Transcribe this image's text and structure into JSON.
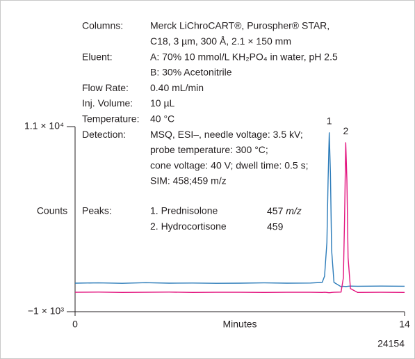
{
  "chart_data": {
    "type": "line",
    "y_label": "Counts",
    "x_label": "Minutes",
    "figure_id": "24154",
    "conditions": [
      {
        "label": "Columns:",
        "lines": [
          "Merck LiChroCART®, Purospher® STAR,",
          "C18, 3 µm, 300 Å, 2.1 × 150 mm"
        ]
      },
      {
        "label": "Eluent:",
        "lines": [
          "A: 70% 10 mmol/L KH₂PO₄ in water, pH 2.5",
          "B: 30% Acetonitrile"
        ]
      },
      {
        "label": "Flow Rate:",
        "lines": [
          "0.40 mL/min"
        ]
      },
      {
        "label": "Inj. Volume:",
        "lines": [
          "10 µL"
        ]
      },
      {
        "label": "Temperature:",
        "lines": [
          "40 °C"
        ]
      },
      {
        "label": "Detection:",
        "lines": [
          "MSQ, ESI–, needle voltage: 3.5 kV;",
          "probe temperature: 300 °C;",
          "cone voltage: 40 V; dwell time: 0.5 s;",
          "SIM: 458;459 m/z"
        ]
      }
    ],
    "peaks_label": "Peaks:",
    "peaks": [
      {
        "name": "1. Prednisolone",
        "mz": "457",
        "unit": "m/z"
      },
      {
        "name": "2. Hydrocortisone",
        "mz": "459"
      }
    ],
    "annotations": [
      "1",
      "2"
    ],
    "x": [
      0,
      1,
      2,
      3,
      4,
      5,
      6,
      7,
      8,
      9,
      10,
      10.5,
      10.6,
      10.7,
      10.75,
      10.8,
      10.85,
      10.9,
      11.0,
      11.3,
      11.4,
      11.45,
      11.5,
      11.55,
      11.6,
      11.7,
      12,
      13,
      14
    ],
    "series": [
      {
        "name": "Prednisolone",
        "color": "#2b7bb9",
        "values": [
          850,
          870,
          840,
          880,
          850,
          860,
          840,
          850,
          870,
          850,
          860,
          900,
          1300,
          3500,
          7500,
          10600,
          8000,
          3000,
          900,
          620,
          650,
          640,
          630,
          640,
          650,
          660,
          650,
          660,
          650
        ]
      },
      {
        "name": "Hydrocortisone",
        "color": "#e3157f",
        "values": [
          260,
          270,
          250,
          260,
          270,
          250,
          260,
          260,
          250,
          260,
          260,
          250,
          260,
          250,
          240,
          230,
          240,
          250,
          260,
          270,
          1200,
          5000,
          9960,
          7500,
          2500,
          500,
          250,
          260,
          250
        ]
      }
    ],
    "xlim": [
      0,
      14
    ],
    "xticks": [
      0,
      14
    ],
    "ylim": [
      -1000,
      11000
    ],
    "yticks": [
      {
        "value": 11000,
        "label": "1.1 × 10⁴"
      },
      {
        "value": -1000,
        "label": "−1 × 10³"
      }
    ]
  }
}
